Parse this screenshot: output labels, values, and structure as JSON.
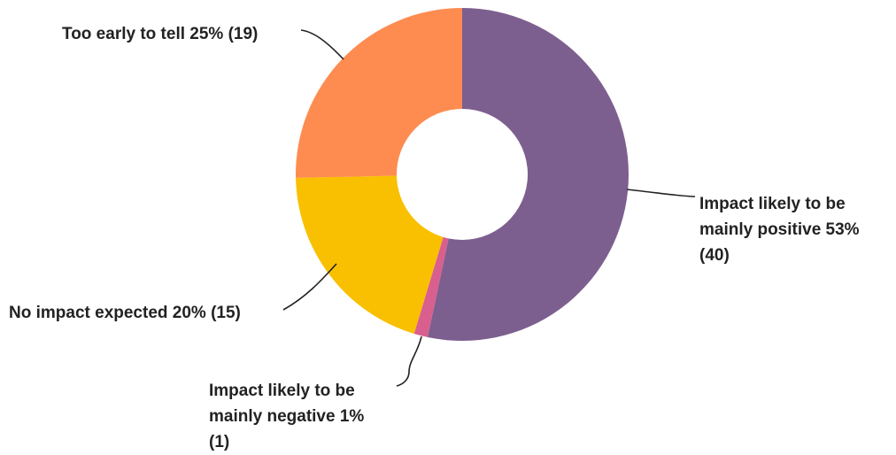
{
  "chart_data": {
    "type": "pie",
    "donut": true,
    "title": "",
    "legend": "none",
    "slices": [
      {
        "label": "Impact likely to be mainly positive 53% (40)",
        "name": "Impact likely to be mainly positive",
        "percent": 53,
        "count": 40,
        "color": "#7d5f8f"
      },
      {
        "label": "Impact likely to be mainly negative 1% (1)",
        "name": "Impact likely to be mainly negative",
        "percent": 1,
        "count": 1,
        "color": "#d95f8e"
      },
      {
        "label": "No impact expected 20% (15)",
        "name": "No impact expected",
        "percent": 20,
        "count": 15,
        "color": "#f8c000"
      },
      {
        "label": "Too early to tell 25% (19)",
        "name": "Too early to tell",
        "percent": 25,
        "count": 19,
        "color": "#fe8c51"
      }
    ]
  },
  "labels": {
    "positive": "Impact likely to be\nmainly positive 53%\n(40)",
    "negative": "Impact likely to be\nmainly negative 1%\n(1)",
    "none": "No impact expected 20% (15)",
    "early": "Too early to tell 25% (19)"
  }
}
